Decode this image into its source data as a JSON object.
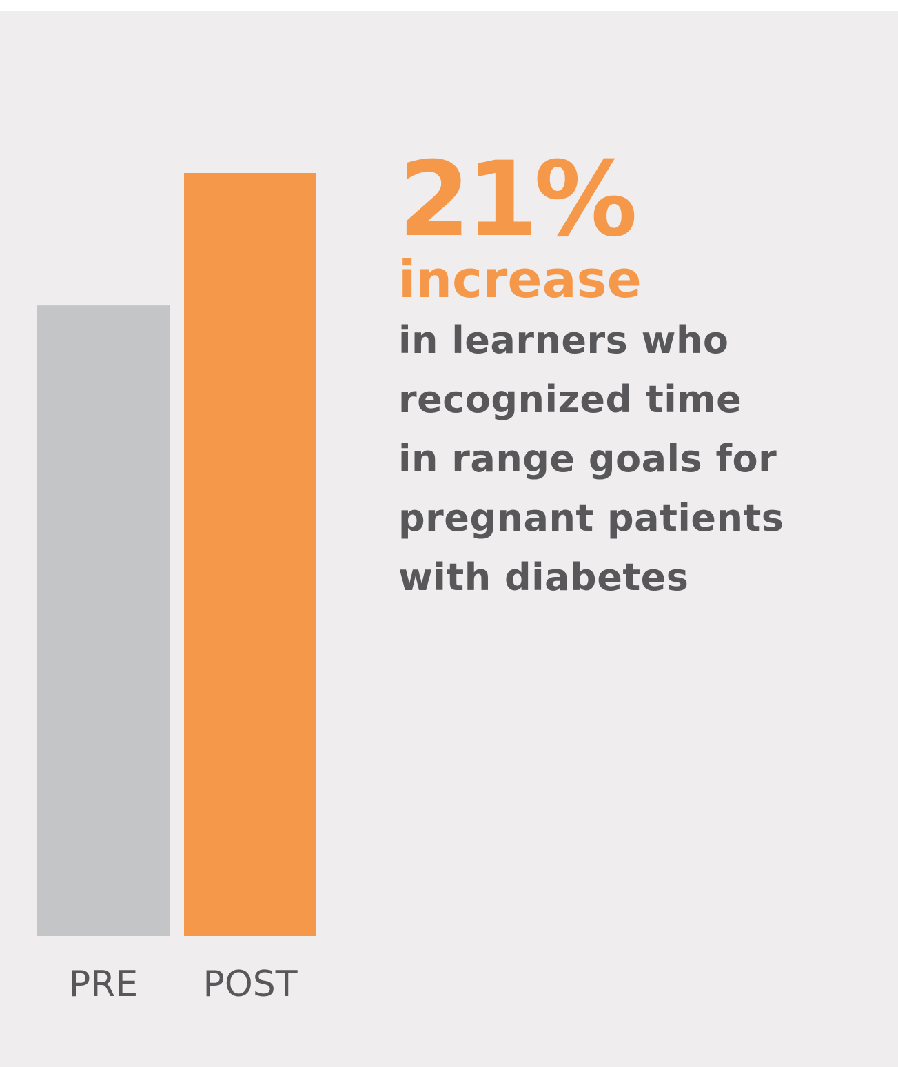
{
  "colors": {
    "panel_background": "#efedee",
    "accent": "#f5984a",
    "pre_bar": "#c4c5c6",
    "body_text": "#58585a",
    "axis_label": "#58585a"
  },
  "stat": {
    "value": "21%",
    "highlight": "increase",
    "description_lines": [
      "in learners who",
      "recognized time",
      "in range goals for",
      "pregnant patients",
      "with diabetes"
    ]
  },
  "chart_data": {
    "type": "bar",
    "categories": [
      "PRE",
      "POST"
    ],
    "values": [
      1.0,
      1.21
    ],
    "bar_colors": [
      "#c4c5c6",
      "#f5984a"
    ],
    "title": "",
    "xlabel": "",
    "ylabel": "",
    "grid": false,
    "axes_visible": false,
    "tick_labels_shown": false
  }
}
